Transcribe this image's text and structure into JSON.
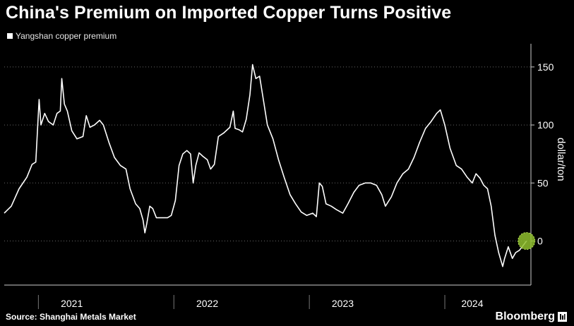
{
  "title": "China's Premium on Imported Copper Turns Positive",
  "source": "Source: Shanghai Metals Market",
  "brand": "Bloomberg",
  "colors": {
    "background": "#000000",
    "line": "#ffffff",
    "marker": "#8fbf2e",
    "grid": "#666666"
  },
  "chart_data": {
    "type": "line",
    "title": "China's Premium on Imported Copper Turns Positive",
    "ylabel": "dollar/ton",
    "xlabel": "",
    "ylim": [
      -38,
      170
    ],
    "yticks": [
      0,
      50,
      100,
      150
    ],
    "xlim": [
      "2020-10-01",
      "2024-08-20"
    ],
    "year_labels": [
      {
        "label": "2021",
        "date": "2021-04-01"
      },
      {
        "label": "2022",
        "date": "2022-04-01"
      },
      {
        "label": "2023",
        "date": "2023-04-01"
      },
      {
        "label": "2024",
        "date": "2024-03-15"
      }
    ],
    "year_boundaries": [
      "2021-01-01",
      "2022-01-01",
      "2023-01-01",
      "2024-01-01"
    ],
    "grid": "horizontal dotted",
    "legend": "top-left",
    "series": [
      {
        "name": "Yangshan copper premium",
        "points": [
          [
            "2020-10-01",
            24
          ],
          [
            "2020-10-20",
            30
          ],
          [
            "2020-11-10",
            45
          ],
          [
            "2020-12-01",
            55
          ],
          [
            "2020-12-15",
            66
          ],
          [
            "2020-12-25",
            68
          ],
          [
            "2021-01-03",
            122
          ],
          [
            "2021-01-08",
            100
          ],
          [
            "2021-01-18",
            110
          ],
          [
            "2021-01-28",
            103
          ],
          [
            "2021-02-10",
            100
          ],
          [
            "2021-02-20",
            110
          ],
          [
            "2021-03-01",
            112
          ],
          [
            "2021-03-05",
            140
          ],
          [
            "2021-03-12",
            118
          ],
          [
            "2021-03-20",
            112
          ],
          [
            "2021-04-01",
            95
          ],
          [
            "2021-04-15",
            88
          ],
          [
            "2021-05-01",
            90
          ],
          [
            "2021-05-10",
            108
          ],
          [
            "2021-05-20",
            98
          ],
          [
            "2021-06-01",
            100
          ],
          [
            "2021-06-15",
            104
          ],
          [
            "2021-06-25",
            100
          ],
          [
            "2021-07-10",
            85
          ],
          [
            "2021-07-25",
            72
          ],
          [
            "2021-08-10",
            65
          ],
          [
            "2021-08-25",
            62
          ],
          [
            "2021-09-05",
            45
          ],
          [
            "2021-09-20",
            32
          ],
          [
            "2021-10-01",
            28
          ],
          [
            "2021-10-10",
            18
          ],
          [
            "2021-10-15",
            7
          ],
          [
            "2021-10-20",
            15
          ],
          [
            "2021-10-28",
            30
          ],
          [
            "2021-11-05",
            28
          ],
          [
            "2021-11-15",
            20
          ],
          [
            "2021-12-01",
            20
          ],
          [
            "2021-12-15",
            20
          ],
          [
            "2021-12-25",
            22
          ],
          [
            "2022-01-05",
            35
          ],
          [
            "2022-01-15",
            65
          ],
          [
            "2022-01-25",
            75
          ],
          [
            "2022-02-05",
            78
          ],
          [
            "2022-02-15",
            75
          ],
          [
            "2022-02-22",
            50
          ],
          [
            "2022-03-01",
            65
          ],
          [
            "2022-03-10",
            76
          ],
          [
            "2022-03-20",
            73
          ],
          [
            "2022-04-01",
            70
          ],
          [
            "2022-04-10",
            62
          ],
          [
            "2022-04-20",
            66
          ],
          [
            "2022-05-01",
            90
          ],
          [
            "2022-05-15",
            93
          ],
          [
            "2022-06-01",
            98
          ],
          [
            "2022-06-10",
            112
          ],
          [
            "2022-06-15",
            97
          ],
          [
            "2022-06-25",
            96
          ],
          [
            "2022-07-05",
            94
          ],
          [
            "2022-07-15",
            105
          ],
          [
            "2022-07-25",
            126
          ],
          [
            "2022-08-01",
            152
          ],
          [
            "2022-08-10",
            140
          ],
          [
            "2022-08-20",
            142
          ],
          [
            "2022-09-01",
            118
          ],
          [
            "2022-09-10",
            100
          ],
          [
            "2022-09-25",
            88
          ],
          [
            "2022-10-10",
            70
          ],
          [
            "2022-10-25",
            55
          ],
          [
            "2022-11-10",
            40
          ],
          [
            "2022-11-25",
            32
          ],
          [
            "2022-12-10",
            25
          ],
          [
            "2022-12-25",
            22
          ],
          [
            "2023-01-10",
            24
          ],
          [
            "2023-01-20",
            21
          ],
          [
            "2023-01-28",
            50
          ],
          [
            "2023-02-05",
            47
          ],
          [
            "2023-02-15",
            32
          ],
          [
            "2023-03-01",
            30
          ],
          [
            "2023-03-15",
            27
          ],
          [
            "2023-04-01",
            24
          ],
          [
            "2023-04-15",
            32
          ],
          [
            "2023-05-01",
            42
          ],
          [
            "2023-05-15",
            48
          ],
          [
            "2023-06-01",
            50
          ],
          [
            "2023-06-15",
            50
          ],
          [
            "2023-07-01",
            48
          ],
          [
            "2023-07-15",
            40
          ],
          [
            "2023-07-25",
            30
          ],
          [
            "2023-08-10",
            38
          ],
          [
            "2023-08-25",
            50
          ],
          [
            "2023-09-10",
            58
          ],
          [
            "2023-09-25",
            62
          ],
          [
            "2023-10-10",
            72
          ],
          [
            "2023-10-25",
            85
          ],
          [
            "2023-11-10",
            97
          ],
          [
            "2023-11-25",
            103
          ],
          [
            "2023-12-10",
            110
          ],
          [
            "2023-12-20",
            113
          ],
          [
            "2024-01-01",
            100
          ],
          [
            "2024-01-15",
            80
          ],
          [
            "2024-02-01",
            65
          ],
          [
            "2024-02-15",
            62
          ],
          [
            "2024-03-01",
            55
          ],
          [
            "2024-03-15",
            50
          ],
          [
            "2024-03-25",
            58
          ],
          [
            "2024-04-05",
            54
          ],
          [
            "2024-04-15",
            48
          ],
          [
            "2024-04-25",
            45
          ],
          [
            "2024-05-05",
            30
          ],
          [
            "2024-05-15",
            5
          ],
          [
            "2024-05-25",
            -10
          ],
          [
            "2024-06-05",
            -22
          ],
          [
            "2024-06-10",
            -15
          ],
          [
            "2024-06-20",
            -5
          ],
          [
            "2024-07-01",
            -15
          ],
          [
            "2024-07-10",
            -10
          ],
          [
            "2024-07-20",
            -8
          ],
          [
            "2024-08-01",
            -3
          ],
          [
            "2024-08-08",
            0
          ]
        ]
      }
    ],
    "marker": {
      "date": "2024-08-08",
      "value": 0
    }
  }
}
